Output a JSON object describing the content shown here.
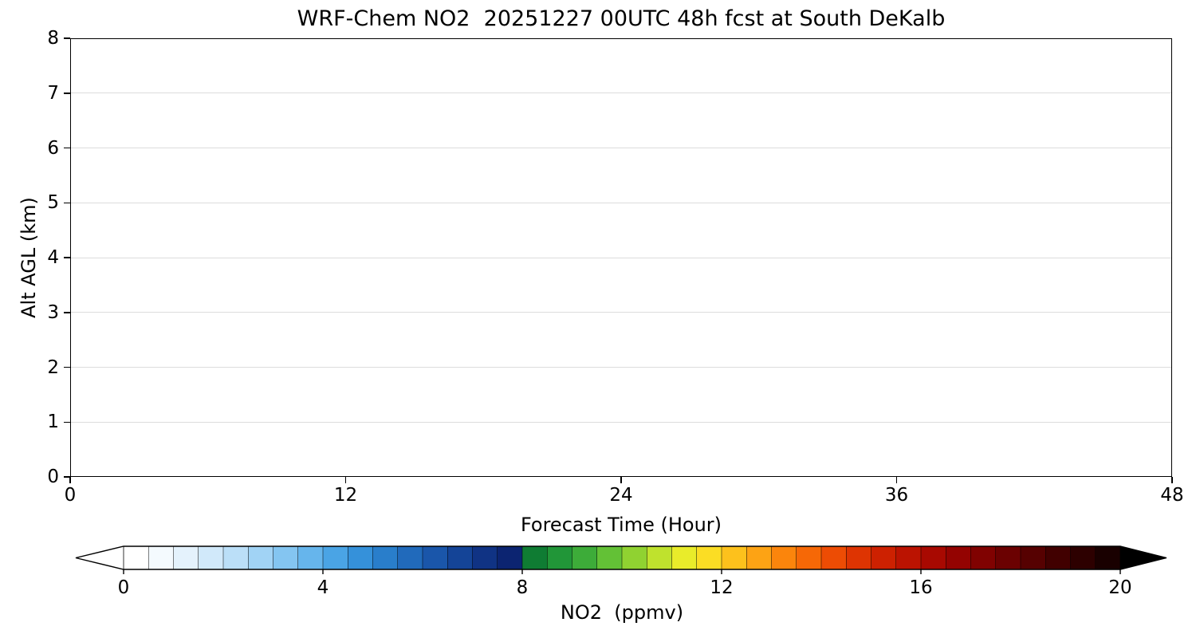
{
  "chart_data": {
    "type": "heatmap",
    "title": "WRF-Chem NO2  20251227 00UTC 48h fcst at South DeKalb",
    "xlabel": "Forecast Time (Hour)",
    "ylabel": "Alt AGL (km)",
    "xlim": [
      0,
      48
    ],
    "ylim": [
      0,
      8
    ],
    "x_ticks": [
      0,
      12,
      24,
      36,
      48
    ],
    "y_ticks": [
      0,
      1,
      2,
      3,
      4,
      5,
      6,
      7,
      8
    ],
    "grid": true,
    "grid_color": "#dcdcdc",
    "background_color": "#ffffff",
    "axis_color": "#000000",
    "values_summary": "NO2 concentration is approximately 0 ppmv at all forecast hours (0-48 h) and all altitudes (0-8 km AGL); the entire plot area renders as white (lowest colorbar bin)",
    "colorbar": {
      "label": "NO2  (ppmv)",
      "ticks": [
        0,
        4,
        8,
        12,
        16,
        20
      ],
      "range": [
        0,
        20
      ],
      "extend": "both",
      "extend_left_color": "#ffffff",
      "extend_right_color": "#000000",
      "segment_colors": [
        "#ffffff",
        "#f4fafe",
        "#e4f2fc",
        "#d1e9fa",
        "#bbdff8",
        "#a1d3f5",
        "#84c5f1",
        "#66b5ec",
        "#4aa4e5",
        "#3591da",
        "#297ecb",
        "#216abb",
        "#1a56aa",
        "#144497",
        "#103384",
        "#0c2471",
        "#0f7c33",
        "#219638",
        "#3dac39",
        "#63c136",
        "#90d231",
        "#bfe22d",
        "#e9ec2a",
        "#fbdd24",
        "#fdc11c",
        "#fda314",
        "#fb850c",
        "#f66806",
        "#ed4c04",
        "#de3402",
        "#cd2101",
        "#bb1301",
        "#a80901",
        "#940301",
        "#800201",
        "#6b0101",
        "#560101",
        "#410000",
        "#2d0000",
        "#190000"
      ]
    }
  }
}
